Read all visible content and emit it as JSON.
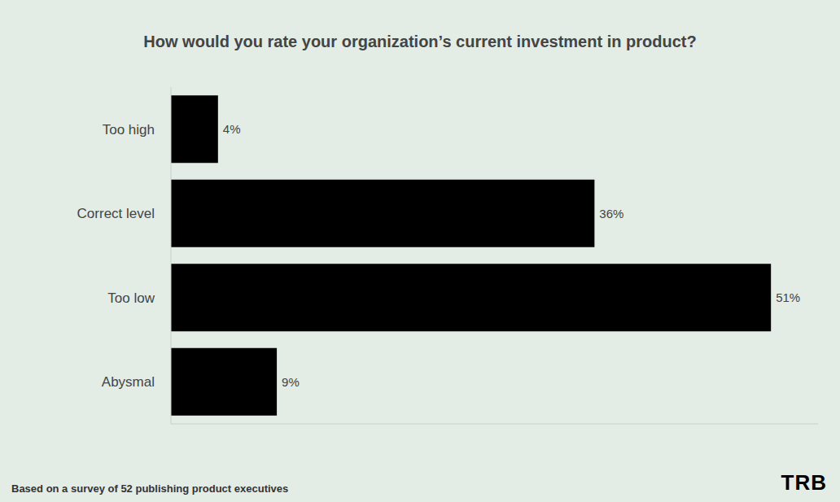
{
  "chart_data": {
    "type": "bar",
    "title": "How would you rate your organization’s current investment in product?",
    "categories": [
      "Too high",
      "Correct level",
      "Too low",
      "Abysmal"
    ],
    "values": [
      4,
      36,
      51,
      9
    ],
    "value_labels": [
      "4%",
      "36%",
      "51%",
      "9%"
    ],
    "color": "#000000",
    "orientation": "horizontal",
    "xlim": [
      0,
      55
    ],
    "data_labels": true,
    "tick_labels": "y",
    "grid": false,
    "annotations": [
      "Based on a survey of 52 publishing product executives",
      "TRB"
    ]
  }
}
